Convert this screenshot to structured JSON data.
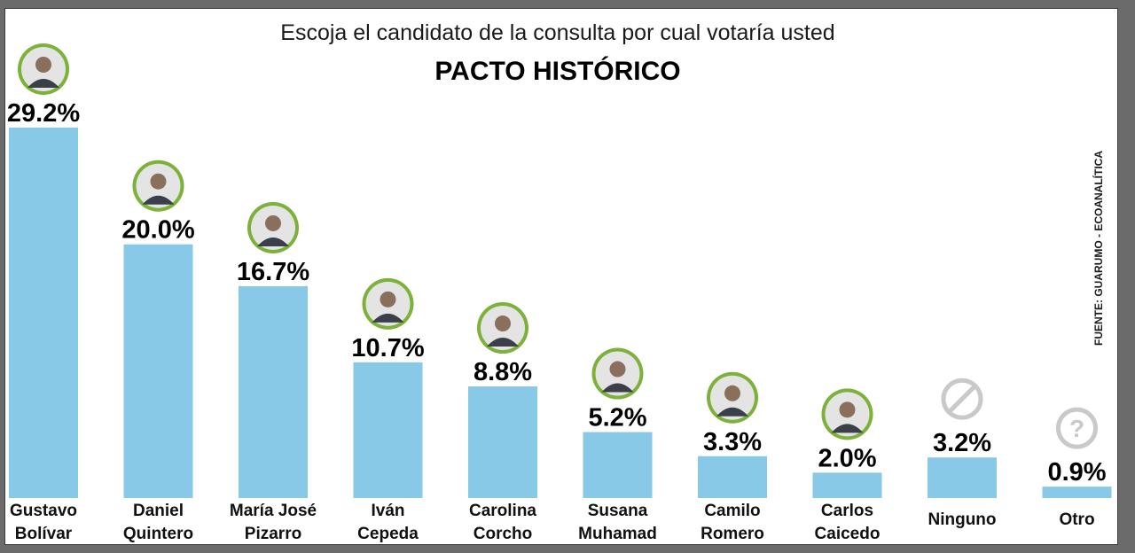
{
  "chart_data": {
    "type": "bar",
    "title": "Escoja el candidato de la consulta por cual votaría usted",
    "subtitle": "PACTO HISTÓRICO",
    "source": "FUENTE: GUARUMO - ECOANALÍTICA",
    "ylim": [
      0,
      29.2
    ],
    "bar_color": "#89c9e8",
    "avatar_ring_color": "#7db23a",
    "icon_color": "#c9c9c9",
    "categories": [
      {
        "line1": "Gustavo",
        "line2": "Bolívar",
        "value": 29.2,
        "label": "29.2%",
        "icon": "candidate-photo"
      },
      {
        "line1": "Daniel",
        "line2": "Quintero",
        "value": 20.0,
        "label": "20.0%",
        "icon": "candidate-photo"
      },
      {
        "line1": "María José",
        "line2": "Pizarro",
        "value": 16.7,
        "label": "16.7%",
        "icon": "candidate-photo"
      },
      {
        "line1": "Iván",
        "line2": "Cepeda",
        "value": 10.7,
        "label": "10.7%",
        "icon": "candidate-photo"
      },
      {
        "line1": "Carolina",
        "line2": "Corcho",
        "value": 8.8,
        "label": "8.8%",
        "icon": "candidate-photo"
      },
      {
        "line1": "Susana",
        "line2": "Muhamad",
        "value": 5.2,
        "label": "5.2%",
        "icon": "candidate-photo"
      },
      {
        "line1": "Camilo",
        "line2": "Romero",
        "value": 3.3,
        "label": "3.3%",
        "icon": "candidate-photo"
      },
      {
        "line1": "Carlos",
        "line2": "Caicedo",
        "value": 2.0,
        "label": "2.0%",
        "icon": "candidate-photo"
      },
      {
        "line1": "Ninguno",
        "line2": "",
        "value": 3.2,
        "label": "3.2%",
        "icon": "prohibited-icon"
      },
      {
        "line1": "Otro",
        "line2": "",
        "value": 0.9,
        "label": "0.9%",
        "icon": "question-icon"
      }
    ]
  }
}
